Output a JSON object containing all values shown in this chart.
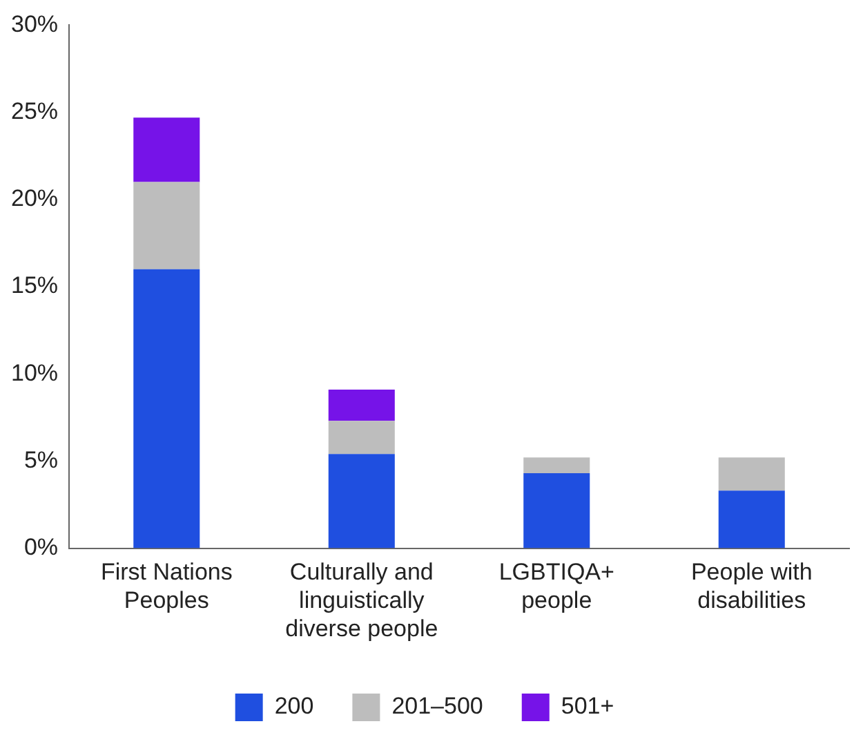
{
  "chart_data": {
    "type": "bar",
    "stacked": true,
    "categories": [
      "First Nations Peoples",
      "Culturally and linguistically diverse people",
      "LGBTIQA+ people",
      "People with disabilities"
    ],
    "series": [
      {
        "name": "200",
        "color": "#1f4fe0",
        "values": [
          16.0,
          5.4,
          4.3,
          3.3
        ]
      },
      {
        "name": "201–500",
        "color": "#bdbdbd",
        "values": [
          5.0,
          1.9,
          0.9,
          1.9
        ]
      },
      {
        "name": "501+",
        "color": "#7613e8",
        "values": [
          3.7,
          1.8,
          null,
          null
        ]
      }
    ],
    "ylim": [
      0,
      30
    ],
    "yticks": [
      {
        "value": 0,
        "label": "0%"
      },
      {
        "value": 5,
        "label": "5%"
      },
      {
        "value": 10,
        "label": "10%"
      },
      {
        "value": 15,
        "label": "15%"
      },
      {
        "value": 20,
        "label": "20%"
      },
      {
        "value": 25,
        "label": "25%"
      },
      {
        "value": 30,
        "label": "30%"
      }
    ],
    "grid": false,
    "legend": "bottom"
  }
}
